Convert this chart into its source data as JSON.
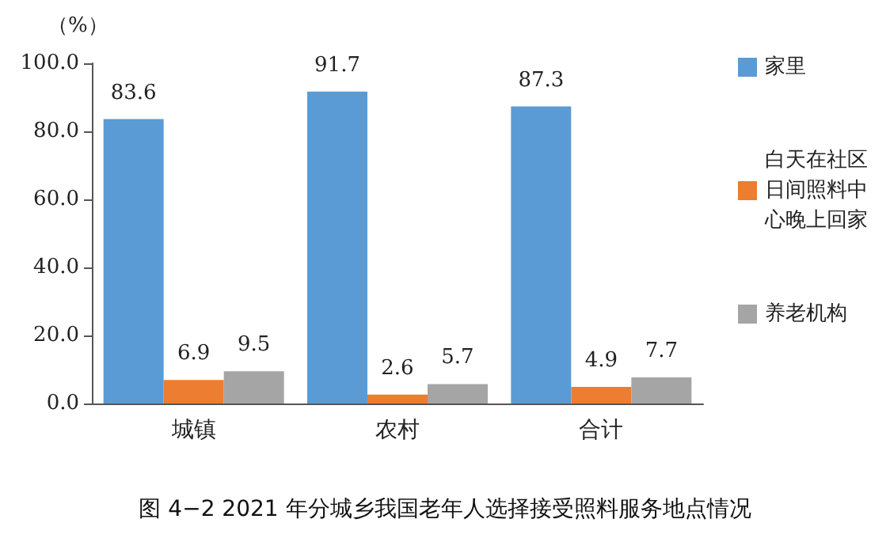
{
  "chart_data": {
    "type": "bar",
    "title": "图 4−2 2021 年分城乡我国老年人选择接受照料服务地点情况",
    "ylabel": "（%）",
    "categories": [
      "城镇",
      "农村",
      "合计"
    ],
    "series": [
      {
        "name": "家里",
        "color": "#5b9bd5",
        "values": [
          83.6,
          91.7,
          87.3
        ]
      },
      {
        "name": "白天在社区日间照料中心晚上回家",
        "color": "#ed7d31",
        "values": [
          6.9,
          2.6,
          4.9
        ]
      },
      {
        "name": "养老机构",
        "color": "#a5a5a5",
        "values": [
          9.5,
          5.7,
          7.7
        ]
      }
    ],
    "ylim": [
      0,
      100
    ],
    "yticks": [
      {
        "value": 0,
        "label": "0.0"
      },
      {
        "value": 20,
        "label": "20.0"
      },
      {
        "value": 40,
        "label": "40.0"
      },
      {
        "value": 60,
        "label": "60.0"
      },
      {
        "value": 80,
        "label": "80.0"
      },
      {
        "value": 100,
        "label": "100.0"
      }
    ],
    "data_labels": true,
    "legend": "right",
    "grid": false
  }
}
